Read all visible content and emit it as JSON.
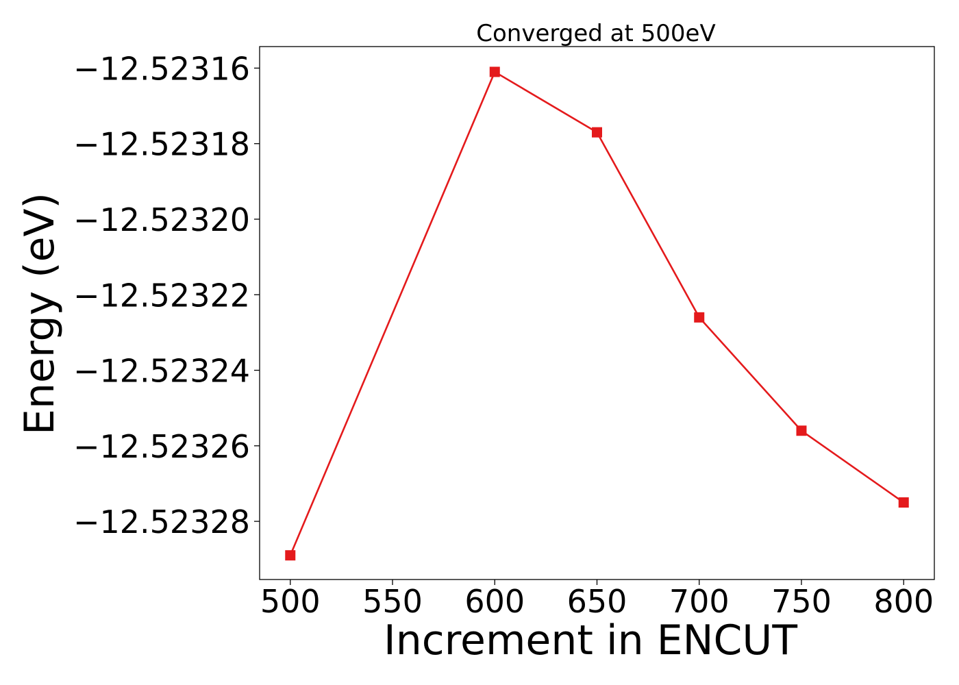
{
  "chart_data": {
    "type": "line",
    "title": "Converged at 500eV",
    "xlabel": "Increment in ENCUT",
    "ylabel": "Energy (eV)",
    "x": [
      500,
      600,
      650,
      700,
      750,
      800
    ],
    "series": [
      {
        "values": [
          -12.523289,
          -12.523161,
          -12.523177,
          -12.523226,
          -12.523256,
          -12.523275
        ],
        "color": "#e41a1c",
        "marker": "square"
      }
    ],
    "xticks": [
      500,
      550,
      600,
      650,
      700,
      750,
      800
    ],
    "xtick_labels": [
      "500",
      "550",
      "600",
      "650",
      "700",
      "750",
      "800"
    ],
    "yticks": [
      -12.52316,
      -12.52318,
      -12.5232,
      -12.52322,
      -12.52324,
      -12.52326,
      -12.52328
    ],
    "ytick_labels": [
      "−12.52316",
      "−12.52318",
      "−12.52320",
      "−12.52322",
      "−12.52324",
      "−12.52326",
      "−12.52328"
    ],
    "xlim": [
      485,
      815
    ],
    "ylim": [
      -12.5232954,
      -12.5231543
    ],
    "grid": false,
    "legend": "none"
  }
}
